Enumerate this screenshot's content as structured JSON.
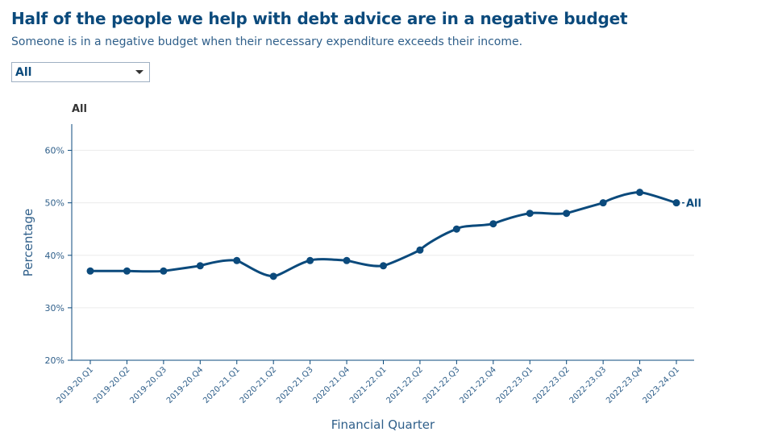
{
  "header": {
    "title": "Half of the people we help with debt advice are in a negative budget",
    "subtitle": "Someone is in a negative budget when their necessary expenditure exceeds their income."
  },
  "filter": {
    "selected": "All"
  },
  "chart_data": {
    "type": "line",
    "title": "All",
    "xlabel": "Financial Quarter",
    "ylabel": "Percentage",
    "ylim": [
      20,
      65
    ],
    "yticks": [
      20,
      30,
      40,
      50,
      60
    ],
    "ytick_suffix": "%",
    "grid": true,
    "categories": [
      "2019-20.Q1",
      "2019-20.Q2",
      "2019-20.Q3",
      "2019-20.Q4",
      "2020-21.Q1",
      "2020-21.Q2",
      "2020-21.Q3",
      "2020-21.Q4",
      "2021-22.Q1",
      "2021-22.Q2",
      "2021-22.Q3",
      "2021-22.Q4",
      "2022-23.Q1",
      "2022-23.Q2",
      "2022-23.Q3",
      "2022-23.Q4",
      "2023-24.Q1"
    ],
    "series": [
      {
        "name": "All",
        "values": [
          37,
          37,
          37,
          38,
          39,
          36,
          39,
          39,
          38,
          41,
          45,
          46,
          48,
          48,
          50,
          52,
          50
        ]
      }
    ],
    "colors": {
      "line": "#0b4a7c",
      "axis": "#0b4a7c",
      "tick_text": "#2f5f8a",
      "grid": "#ececec"
    }
  }
}
